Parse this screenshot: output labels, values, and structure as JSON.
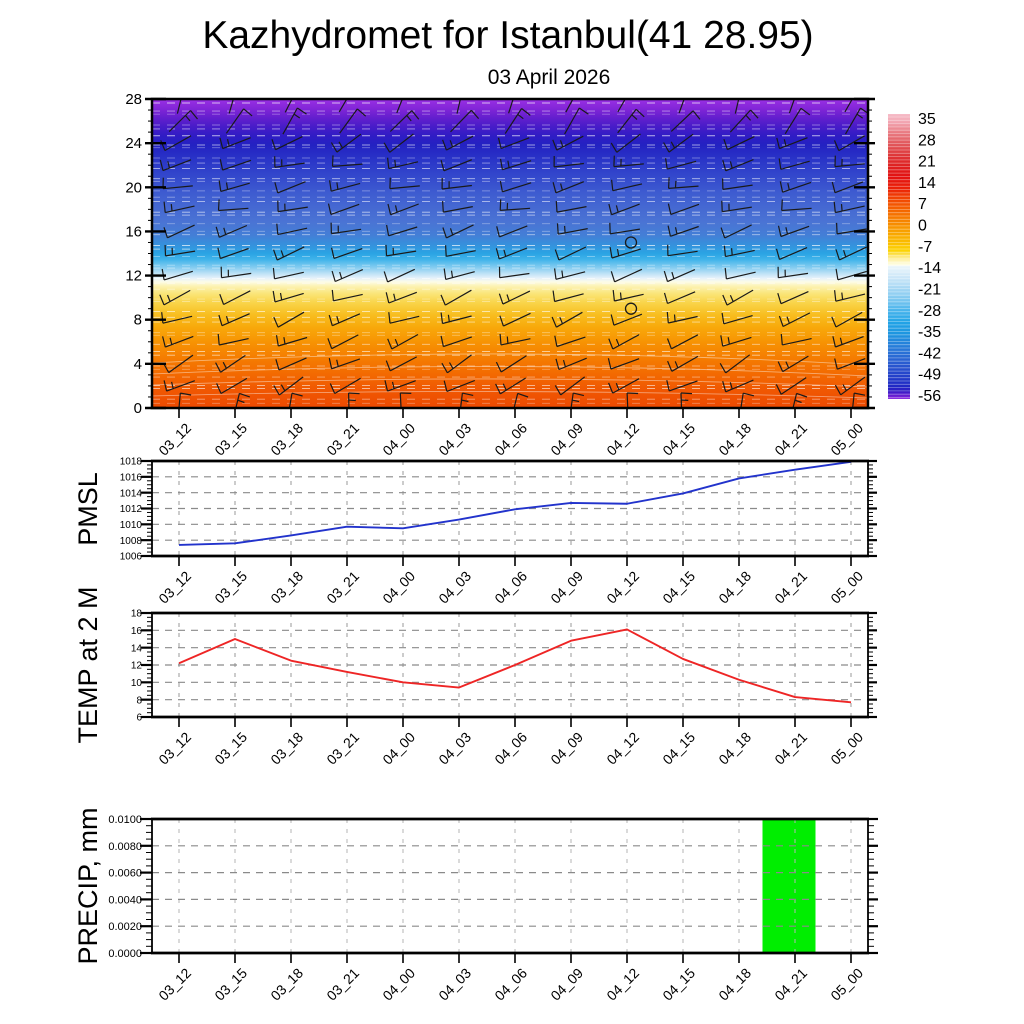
{
  "header": {
    "title": "Kazhydromet for Istanbul(41 28.95)",
    "subtitle": "03 April 2026"
  },
  "times": [
    "03_12",
    "03_15",
    "03_18",
    "03_21",
    "04_00",
    "04_03",
    "04_06",
    "04_09",
    "04_12",
    "04_15",
    "04_18",
    "04_21",
    "05_00"
  ],
  "chart_data": [
    {
      "id": "upper_air",
      "type": "heatmap",
      "title": "",
      "x_categories": [
        "03_12",
        "03_15",
        "03_18",
        "03_21",
        "04_00",
        "04_03",
        "04_06",
        "04_09",
        "04_12",
        "04_15",
        "04_18",
        "04_21",
        "05_00"
      ],
      "y_range": [
        0,
        28
      ],
      "y_ticks_top_to_bottom": [
        "28",
        "24",
        "20",
        "16",
        "12",
        "8",
        "4",
        "0"
      ],
      "description": "Time-height temperature cross-section with wind barbs: warm orange/red below level 11, pale band near level 12, cyan and blue from 13 to 25, violet above 26; thin white dashed contour lines throughout",
      "calm_markers": [
        {
          "x": "04_12",
          "level": 15
        },
        {
          "x": "04_12",
          "level": 9
        }
      ],
      "gradient_stops_top_to_bottom": [
        [
          0,
          "#9a30e4"
        ],
        [
          0.03,
          "#8326d8"
        ],
        [
          0.06,
          "#641fce"
        ],
        [
          0.09,
          "#471cc8"
        ],
        [
          0.12,
          "#2f1cc4"
        ],
        [
          0.15,
          "#2322c2"
        ],
        [
          0.2,
          "#2a36c8"
        ],
        [
          0.25,
          "#3348cc"
        ],
        [
          0.3,
          "#3d5ad0"
        ],
        [
          0.35,
          "#4568d2"
        ],
        [
          0.4,
          "#4a74d4"
        ],
        [
          0.44,
          "#447ed6"
        ],
        [
          0.47,
          "#3690dc"
        ],
        [
          0.5,
          "#2aa4e4"
        ],
        [
          0.52,
          "#41b4ea"
        ],
        [
          0.545,
          "#84ccf0"
        ],
        [
          0.565,
          "#bee2f6"
        ],
        [
          0.58,
          "#e6f2fb"
        ],
        [
          0.592,
          "#fdfce6"
        ],
        [
          0.605,
          "#fcf3b4"
        ],
        [
          0.63,
          "#fae578"
        ],
        [
          0.66,
          "#f9d449"
        ],
        [
          0.7,
          "#f8bd1e"
        ],
        [
          0.74,
          "#f8a80a"
        ],
        [
          0.79,
          "#f79203"
        ],
        [
          0.84,
          "#f57c01"
        ],
        [
          0.89,
          "#f36a01"
        ],
        [
          0.94,
          "#f05802"
        ],
        [
          1,
          "#ed4a02"
        ]
      ],
      "colorbar": {
        "tick_labels": [
          "35",
          "28",
          "21",
          "14",
          "7",
          "0",
          "-7",
          "-14",
          "-21",
          "-28",
          "-35",
          "-42",
          "-49",
          "-56"
        ],
        "stops_top_to_bottom": [
          [
            0,
            "#f6bcc8"
          ],
          [
            0.03,
            "#f2a4b0"
          ],
          [
            0.06,
            "#ea8088"
          ],
          [
            0.1,
            "#e25c60"
          ],
          [
            0.14,
            "#de3a3c"
          ],
          [
            0.18,
            "#de2222"
          ],
          [
            0.22,
            "#e21212"
          ],
          [
            0.26,
            "#ea2008"
          ],
          [
            0.29,
            "#f04004"
          ],
          [
            0.33,
            "#f46000"
          ],
          [
            0.37,
            "#f68000"
          ],
          [
            0.41,
            "#f8a000"
          ],
          [
            0.45,
            "#fabc00"
          ],
          [
            0.48,
            "#fcd404"
          ],
          [
            0.5,
            "#fde87c"
          ],
          [
            0.52,
            "#fef8c8"
          ],
          [
            0.53,
            "#fefee8"
          ],
          [
            0.535,
            "#eaf5fb"
          ],
          [
            0.57,
            "#cfe8f8"
          ],
          [
            0.61,
            "#a8d8f4"
          ],
          [
            0.65,
            "#7ec8f0"
          ],
          [
            0.69,
            "#48b4ec"
          ],
          [
            0.73,
            "#22a4e6"
          ],
          [
            0.77,
            "#1e96e0"
          ],
          [
            0.81,
            "#2680da"
          ],
          [
            0.85,
            "#2a6ad4"
          ],
          [
            0.89,
            "#2852ce"
          ],
          [
            0.93,
            "#223ac8"
          ],
          [
            0.96,
            "#2024c4"
          ],
          [
            0.975,
            "#3a1ac6"
          ],
          [
            0.99,
            "#6c1ed2"
          ],
          [
            1,
            "#9032e2"
          ]
        ]
      },
      "wind": {
        "grid": "13 time columns x 15 levels (levels 0-28 every 2)",
        "note": "black wind barbs, staffs tilted up-right at low/mid levels, near-vertical at top and surface; calm circles at 04_12 levels 9 and 15"
      }
    },
    {
      "id": "pmsl",
      "type": "line",
      "label": "PMSL",
      "x_categories": [
        "03_12",
        "03_15",
        "03_18",
        "03_21",
        "04_00",
        "04_03",
        "04_06",
        "04_09",
        "04_12",
        "04_15",
        "04_18",
        "04_21",
        "05_00"
      ],
      "values": [
        1007.4,
        1007.6,
        1008.6,
        1009.7,
        1009.5,
        1010.6,
        1011.9,
        1012.7,
        1012.6,
        1013.9,
        1015.8,
        1016.9,
        1017.9
      ],
      "y_tick_labels_top_to_bottom": [
        "1018",
        "1016",
        "1014",
        "1012",
        "1010",
        "1008",
        "1006"
      ],
      "y_range": [
        1006,
        1018
      ],
      "line_color": "#2233cc",
      "grid": "dashed grey horizontal and vertical gridlines"
    },
    {
      "id": "temp2m",
      "type": "line",
      "label": "TEMP at 2 M",
      "x_categories": [
        "03_12",
        "03_15",
        "03_18",
        "03_21",
        "04_00",
        "04_03",
        "04_06",
        "04_09",
        "04_12",
        "04_15",
        "04_18",
        "04_21",
        "05_00"
      ],
      "values": [
        12.2,
        15.0,
        12.5,
        11.2,
        10.0,
        9.4,
        12.0,
        14.8,
        16.1,
        12.7,
        10.3,
        8.3,
        7.7
      ],
      "y_tick_labels_top_to_bottom": [
        "18",
        "16",
        "14",
        "12",
        "10",
        "8",
        "6"
      ],
      "y_range": [
        6,
        18
      ],
      "line_color": "#ee2525",
      "grid": "dashed grey horizontal and vertical gridlines"
    },
    {
      "id": "precip",
      "type": "bar",
      "label": "PRECIP, mm",
      "x_categories": [
        "03_12",
        "03_15",
        "03_18",
        "03_21",
        "04_00",
        "04_03",
        "04_06",
        "04_09",
        "04_12",
        "04_15",
        "04_18",
        "04_21",
        "05_00"
      ],
      "values": [
        0,
        0,
        0,
        0,
        0,
        0,
        0,
        0,
        0,
        0,
        0,
        0.01,
        0
      ],
      "y_tick_labels_top_to_bottom": [
        "0.0100",
        "0.0080",
        "0.0060",
        "0.0040",
        "0.0020",
        "0.0000"
      ],
      "y_range": [
        0,
        0.01
      ],
      "bar_color": "#00ee00",
      "bar_note": "single full-height green bar centered on 04_21",
      "grid": "dashed grey horizontal and vertical gridlines"
    }
  ]
}
